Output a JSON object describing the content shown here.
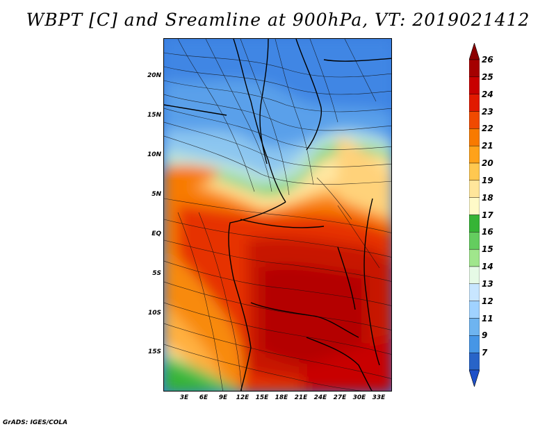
{
  "title": "WBPT [C] and Sreamline at 900hPa, VT: 2019021412",
  "credit": "GrADS: IGES/COLA",
  "lat_ticks": [
    "20N",
    "15N",
    "10N",
    "5N",
    "EQ",
    "5S",
    "10S",
    "15S"
  ],
  "lon_ticks": [
    "3E",
    "6E",
    "9E",
    "12E",
    "15E",
    "18E",
    "21E",
    "24E",
    "27E",
    "30E",
    "33E"
  ],
  "colorbar": {
    "labels": [
      "26",
      "25",
      "24",
      "23",
      "22",
      "21",
      "20",
      "19",
      "18",
      "17",
      "16",
      "15",
      "14",
      "13",
      "12",
      "11",
      "9",
      "7"
    ],
    "colors": [
      "#a50000",
      "#c80000",
      "#e11a00",
      "#f04a00",
      "#f87a00",
      "#ffa21a",
      "#ffc850",
      "#ffe69b",
      "#fffac8",
      "#36b436",
      "#64cd5f",
      "#a0e68c",
      "#e6fae6",
      "#c8e6ff",
      "#a0d2ff",
      "#6eb4f0",
      "#4696e6",
      "#2864c8"
    ],
    "top_arrow_color": "#8c0000",
    "bottom_arrow_color": "#1e50c8"
  }
}
